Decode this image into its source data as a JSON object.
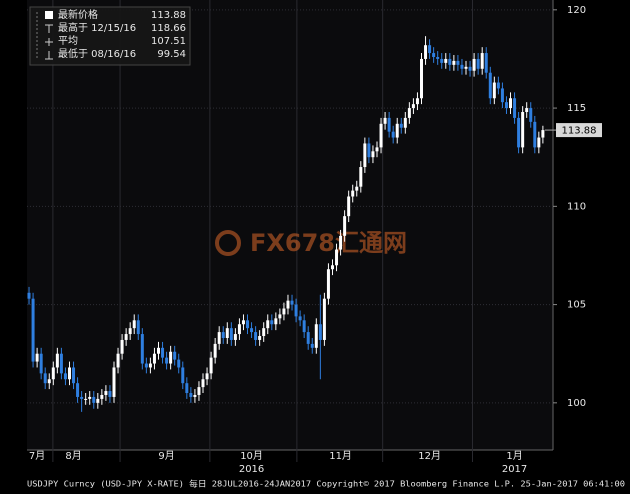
{
  "chart_data": {
    "type": "candlestick",
    "colors": {
      "up": "#ffffff",
      "down": "#2f7fe0"
    },
    "grid": true,
    "xlim": [
      -0.5,
      129.5
    ],
    "xticks": [
      {
        "value": 2,
        "label": "7月"
      },
      {
        "value": 11,
        "label": "8月"
      },
      {
        "value": 34,
        "label": "9月"
      },
      {
        "value": 55,
        "label": "10月"
      },
      {
        "value": 77,
        "label": "11月"
      },
      {
        "value": 99,
        "label": "12月"
      },
      {
        "value": 120,
        "label": "1月"
      }
    ],
    "xgrid": [
      5.9,
      22.5,
      44.7,
      66.2,
      87.4,
      109.6
    ],
    "years": [
      {
        "value": 55,
        "label": "2016"
      },
      {
        "value": 120,
        "label": "2017"
      }
    ],
    "ylim": [
      97.6,
      120.5
    ],
    "yticks": [
      100,
      105,
      110,
      115,
      120
    ],
    "last_price": 113.88,
    "legend": [
      {
        "label": "最新价格",
        "value": 113.88
      },
      {
        "label": "最高于 12/15/16",
        "value": 118.66
      },
      {
        "label": "平均",
        "value": 107.51
      },
      {
        "label": "最低于 08/16/16",
        "value": 99.54
      }
    ],
    "watermark": "FX678汇通网",
    "footer": "USDJPY Curncy (USD-JPY X-RATE)  每日 28JUL2016-24JAN2017 Copyright© 2017 Bloomberg Finance L.P. 25-Jan-2017 06:41:00",
    "ohlc": [
      [
        105.6,
        105.9,
        105.0,
        105.3
      ],
      [
        105.3,
        105.6,
        101.8,
        102.1
      ],
      [
        102.1,
        102.8,
        101.8,
        102.5
      ],
      [
        102.5,
        102.8,
        101.2,
        101.5
      ],
      [
        101.5,
        101.8,
        100.7,
        101.0
      ],
      [
        101.0,
        101.5,
        100.7,
        101.2
      ],
      [
        101.2,
        102.1,
        100.9,
        101.8
      ],
      [
        101.8,
        102.8,
        101.5,
        102.5
      ],
      [
        102.5,
        102.8,
        101.2,
        101.5
      ],
      [
        101.5,
        101.8,
        100.9,
        101.2
      ],
      [
        101.2,
        102.1,
        100.9,
        101.8
      ],
      [
        101.8,
        102.1,
        100.7,
        101.0
      ],
      [
        101.0,
        101.3,
        100.0,
        100.3
      ],
      [
        100.3,
        100.6,
        99.54,
        100.2
      ],
      [
        100.2,
        100.5,
        99.9,
        100.2
      ],
      [
        100.2,
        100.6,
        99.9,
        100.3
      ],
      [
        100.3,
        100.6,
        99.7,
        100.0
      ],
      [
        100.0,
        100.5,
        99.7,
        100.2
      ],
      [
        100.2,
        100.7,
        99.9,
        100.4
      ],
      [
        100.4,
        100.9,
        100.1,
        100.6
      ],
      [
        100.6,
        100.9,
        100.0,
        100.3
      ],
      [
        100.3,
        102.1,
        100.0,
        101.8
      ],
      [
        101.8,
        102.8,
        101.5,
        102.5
      ],
      [
        102.5,
        103.5,
        102.2,
        103.2
      ],
      [
        103.2,
        103.8,
        102.9,
        103.5
      ],
      [
        103.5,
        104.1,
        103.2,
        103.8
      ],
      [
        103.8,
        104.5,
        103.5,
        104.2
      ],
      [
        104.2,
        104.5,
        103.2,
        103.5
      ],
      [
        103.5,
        103.8,
        101.7,
        102.0
      ],
      [
        102.0,
        102.3,
        101.5,
        101.8
      ],
      [
        101.8,
        102.3,
        101.5,
        102.0
      ],
      [
        102.0,
        102.8,
        101.7,
        102.5
      ],
      [
        102.5,
        103.1,
        102.2,
        102.8
      ],
      [
        102.8,
        103.1,
        102.0,
        102.3
      ],
      [
        102.3,
        102.6,
        101.7,
        102.0
      ],
      [
        102.0,
        102.9,
        101.7,
        102.6
      ],
      [
        102.6,
        102.9,
        101.9,
        102.2
      ],
      [
        102.2,
        102.5,
        101.5,
        101.8
      ],
      [
        101.8,
        102.1,
        100.7,
        101.0
      ],
      [
        101.0,
        101.3,
        100.2,
        100.5
      ],
      [
        100.5,
        100.8,
        100.0,
        100.3
      ],
      [
        100.3,
        100.7,
        100.0,
        100.4
      ],
      [
        100.4,
        101.1,
        100.1,
        100.8
      ],
      [
        100.8,
        101.5,
        100.5,
        101.2
      ],
      [
        101.2,
        101.8,
        100.9,
        101.5
      ],
      [
        101.5,
        102.6,
        101.2,
        102.3
      ],
      [
        102.3,
        103.3,
        102.0,
        103.0
      ],
      [
        103.0,
        103.9,
        102.7,
        103.6
      ],
      [
        103.6,
        103.9,
        103.0,
        103.3
      ],
      [
        103.3,
        104.1,
        103.0,
        103.8
      ],
      [
        103.8,
        104.1,
        102.9,
        103.2
      ],
      [
        103.2,
        103.8,
        102.9,
        103.5
      ],
      [
        103.5,
        104.3,
        103.2,
        104.0
      ],
      [
        104.0,
        104.5,
        103.7,
        104.2
      ],
      [
        104.2,
        104.5,
        103.5,
        103.8
      ],
      [
        103.8,
        104.1,
        103.3,
        103.6
      ],
      [
        103.6,
        103.9,
        102.9,
        103.2
      ],
      [
        103.2,
        103.7,
        102.9,
        103.4
      ],
      [
        103.4,
        104.1,
        103.1,
        103.8
      ],
      [
        103.8,
        104.5,
        103.5,
        104.2
      ],
      [
        104.2,
        104.5,
        103.7,
        104.0
      ],
      [
        104.0,
        104.6,
        103.7,
        104.3
      ],
      [
        104.3,
        104.8,
        104.0,
        104.5
      ],
      [
        104.5,
        105.1,
        104.2,
        104.8
      ],
      [
        104.8,
        105.5,
        104.5,
        105.2
      ],
      [
        105.2,
        105.5,
        104.7,
        105.0
      ],
      [
        105.0,
        105.3,
        104.1,
        104.4
      ],
      [
        104.4,
        104.7,
        103.9,
        104.2
      ],
      [
        104.2,
        104.5,
        103.3,
        103.6
      ],
      [
        103.6,
        103.9,
        102.7,
        103.0
      ],
      [
        103.0,
        103.3,
        102.5,
        102.8
      ],
      [
        102.8,
        104.3,
        102.5,
        104.0
      ],
      [
        104.0,
        105.5,
        101.2,
        103.2
      ],
      [
        103.2,
        105.6,
        102.9,
        105.3
      ],
      [
        105.3,
        107.1,
        105.0,
        106.8
      ],
      [
        106.8,
        107.3,
        106.5,
        107.0
      ],
      [
        107.0,
        108.1,
        106.7,
        107.8
      ],
      [
        107.8,
        108.8,
        107.5,
        108.5
      ],
      [
        108.5,
        109.8,
        108.2,
        109.5
      ],
      [
        109.5,
        110.8,
        109.2,
        110.5
      ],
      [
        110.5,
        111.1,
        110.2,
        110.8
      ],
      [
        110.8,
        111.3,
        110.5,
        111.0
      ],
      [
        111.0,
        112.3,
        110.7,
        112.0
      ],
      [
        112.0,
        113.5,
        111.7,
        113.2
      ],
      [
        113.2,
        113.5,
        112.2,
        112.5
      ],
      [
        112.5,
        113.1,
        112.2,
        112.8
      ],
      [
        112.8,
        113.3,
        112.5,
        113.0
      ],
      [
        113.0,
        114.5,
        112.7,
        114.2
      ],
      [
        114.2,
        114.8,
        113.9,
        114.5
      ],
      [
        114.5,
        114.8,
        113.5,
        113.8
      ],
      [
        113.8,
        114.1,
        113.2,
        113.5
      ],
      [
        113.5,
        114.5,
        113.2,
        114.2
      ],
      [
        114.2,
        114.5,
        113.7,
        114.0
      ],
      [
        114.0,
        114.8,
        113.7,
        114.5
      ],
      [
        114.5,
        115.3,
        114.2,
        115.0
      ],
      [
        115.0,
        115.5,
        114.7,
        115.2
      ],
      [
        115.2,
        115.8,
        114.9,
        115.5
      ],
      [
        115.5,
        117.8,
        115.2,
        117.5
      ],
      [
        117.5,
        118.66,
        117.2,
        118.2
      ],
      [
        118.2,
        118.5,
        117.5,
        117.8
      ],
      [
        117.8,
        118.1,
        117.3,
        117.6
      ],
      [
        117.6,
        117.9,
        117.2,
        117.5
      ],
      [
        117.5,
        117.8,
        117.0,
        117.3
      ],
      [
        117.3,
        117.8,
        117.0,
        117.5
      ],
      [
        117.5,
        117.8,
        116.9,
        117.2
      ],
      [
        117.2,
        117.7,
        116.9,
        117.4
      ],
      [
        117.4,
        117.7,
        116.9,
        117.2
      ],
      [
        117.2,
        117.5,
        116.7,
        117.0
      ],
      [
        117.0,
        117.4,
        116.7,
        117.1
      ],
      [
        117.1,
        117.4,
        116.6,
        116.9
      ],
      [
        116.9,
        117.8,
        116.6,
        117.5
      ],
      [
        117.5,
        117.8,
        116.7,
        117.0
      ],
      [
        117.0,
        118.1,
        116.7,
        117.8
      ],
      [
        117.8,
        118.1,
        116.5,
        116.8
      ],
      [
        116.8,
        117.1,
        115.2,
        115.5
      ],
      [
        115.5,
        116.6,
        115.2,
        116.3
      ],
      [
        116.3,
        116.6,
        115.7,
        116.0
      ],
      [
        116.0,
        116.3,
        115.0,
        115.3
      ],
      [
        115.3,
        115.6,
        114.7,
        115.0
      ],
      [
        115.0,
        115.8,
        114.7,
        115.5
      ],
      [
        115.5,
        115.8,
        114.2,
        114.5
      ],
      [
        114.5,
        114.8,
        112.7,
        113.0
      ],
      [
        113.0,
        115.1,
        112.7,
        114.8
      ],
      [
        114.8,
        115.3,
        114.5,
        115.0
      ],
      [
        115.0,
        115.3,
        114.0,
        114.3
      ],
      [
        114.3,
        114.6,
        112.7,
        113.0
      ],
      [
        113.0,
        113.8,
        112.7,
        113.5
      ],
      [
        113.5,
        114.1,
        113.2,
        113.88
      ]
    ]
  }
}
